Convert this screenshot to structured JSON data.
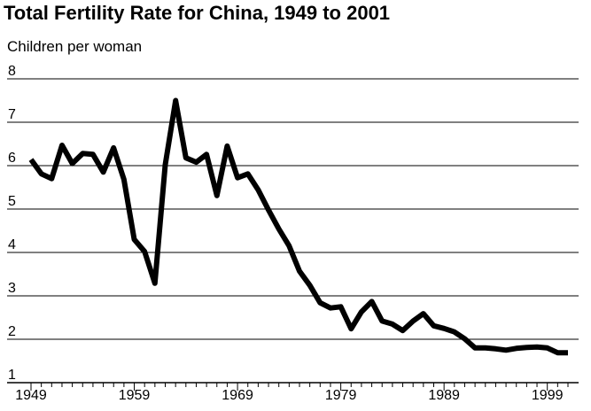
{
  "chart_data": {
    "type": "line",
    "title": "Total Fertility Rate for China, 1949 to 2001",
    "ylabel": "Children per woman",
    "xlabel": "",
    "xlim": [
      1949,
      2001
    ],
    "ylim": [
      1,
      8
    ],
    "y_ticks": [
      1,
      2,
      3,
      4,
      5,
      6,
      7,
      8
    ],
    "x_ticks": [
      1949,
      1959,
      1969,
      1979,
      1989,
      1999
    ],
    "grid": "horizontal",
    "line_color": "#000000",
    "series": [
      {
        "x": [
          1949,
          1950,
          1951,
          1952,
          1953,
          1954,
          1955,
          1956,
          1957,
          1958,
          1959,
          1960,
          1961,
          1962,
          1963,
          1964,
          1965,
          1966,
          1967,
          1968,
          1969,
          1970,
          1971,
          1972,
          1973,
          1974,
          1975,
          1976,
          1977,
          1978,
          1979,
          1980,
          1981,
          1982,
          1983,
          1984,
          1985,
          1986,
          1987,
          1988,
          1989,
          1990,
          1991,
          1992,
          1993,
          1994,
          1995,
          1996,
          1997,
          1998,
          1999,
          2000,
          2001
        ],
        "values": [
          6.14,
          5.81,
          5.7,
          6.47,
          6.05,
          6.28,
          6.26,
          5.85,
          6.41,
          5.68,
          4.3,
          4.02,
          3.29,
          6.02,
          7.5,
          6.18,
          6.08,
          6.26,
          5.31,
          6.45,
          5.72,
          5.81,
          5.44,
          4.98,
          4.54,
          4.15,
          3.57,
          3.24,
          2.84,
          2.72,
          2.75,
          2.24,
          2.63,
          2.87,
          2.42,
          2.35,
          2.2,
          2.42,
          2.59,
          2.31,
          2.25,
          2.17,
          2.01,
          1.8,
          1.8,
          1.78,
          1.75,
          1.79,
          1.81,
          1.82,
          1.8,
          1.69,
          1.69
        ]
      }
    ]
  }
}
